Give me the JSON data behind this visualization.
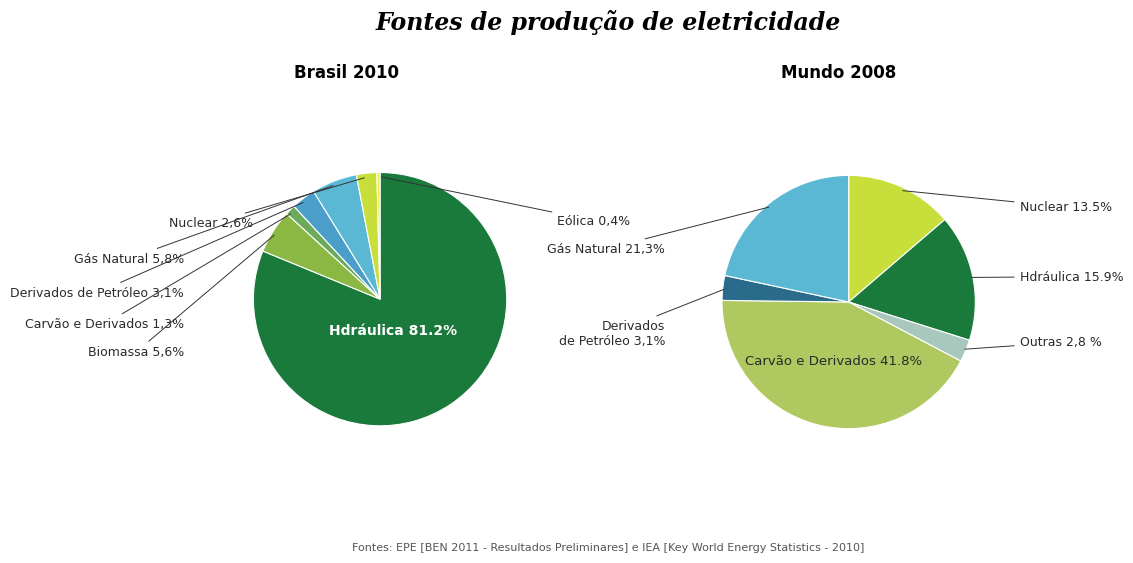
{
  "title": "Fontes de produção de eletricidade",
  "subtitle_left": "Brasil 2010",
  "subtitle_right": "Mundo 2008",
  "footnote": "Fontes: EPE [BEN 2011 - Resultados Preliminares] e IEA [Key World Energy Statistics - 2010]",
  "brasil": {
    "values": [
      81.2,
      5.6,
      1.3,
      3.1,
      5.8,
      2.6,
      0.4
    ],
    "colors": [
      "#1a7a3c",
      "#8ab843",
      "#7ab55c",
      "#4a9ec9",
      "#c8de3a",
      "#ffffff",
      "#1a7a3c"
    ],
    "label_texts": [
      "Hdráulica 81.2%",
      "Biomassa 5,6%",
      "Carvão e Derivados 1,3%",
      "Derivados de Petróleo 3,1%",
      "Gás Natural 5,8%",
      "Nuclear 2,6%",
      "Eólica 0,4%"
    ],
    "inner_label": "Hdráulica 81.2%",
    "startangle": 90
  },
  "mundo": {
    "values": [
      13.5,
      15.9,
      2.8,
      41.8,
      3.1,
      21.3
    ],
    "colors": [
      "#c8de3a",
      "#1a7a3c",
      "#a8c8c0",
      "#b0c860",
      "#2a6a8a",
      "#5bb8d4"
    ],
    "label_texts": [
      "Nuclear 13.5%",
      "Hdráulica 15.9%",
      "Outras 2,8 %",
      "Carvão e Derivados 41.8%",
      "Derivados\nde Petróleo 3,1%",
      "Gás Natural 21,3%"
    ],
    "inner_label": "Carvão e Derivados 41.8%",
    "startangle": 90
  },
  "background_color": "#ffffff",
  "title_color": "#000000",
  "label_color": "#2a2a2a",
  "footnote_color": "#555555"
}
